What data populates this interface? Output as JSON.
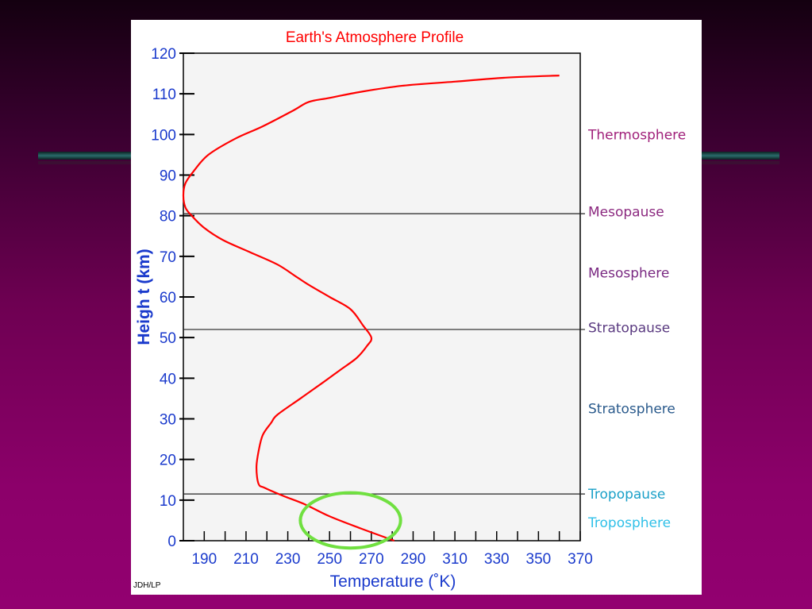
{
  "chart_data": {
    "type": "line",
    "title": "Earth's Atmosphere Profile",
    "xlabel": "Temperature (˚K)",
    "ylabel": "Heigh t (km)",
    "xlim": [
      180,
      370
    ],
    "ylim": [
      0,
      120
    ],
    "x_ticks": [
      190,
      210,
      230,
      250,
      270,
      290,
      310,
      330,
      350,
      370
    ],
    "y_ticks": [
      0,
      10,
      20,
      30,
      40,
      50,
      60,
      70,
      80,
      90,
      100,
      110,
      120
    ],
    "grid": false,
    "series": [
      {
        "color": "#ff0000",
        "x": [
          281,
          265,
          250,
          238,
          228,
          219,
          216,
          215,
          216,
          218,
          222,
          225,
          236,
          247,
          255,
          263,
          268,
          270,
          266,
          260,
          250,
          240,
          234,
          225,
          212,
          199,
          190,
          184,
          181,
          180,
          181,
          185,
          192,
          205,
          218,
          233,
          240,
          250,
          265,
          285,
          310,
          335,
          360
        ],
        "y": [
          0,
          3,
          6,
          9,
          11,
          13,
          14,
          18,
          22,
          26,
          29,
          31,
          35,
          39,
          42,
          45,
          48,
          50,
          53,
          57,
          60,
          63,
          65,
          68,
          71,
          74,
          77,
          80,
          82,
          85,
          88,
          91,
          95,
          99,
          102,
          106,
          108,
          109,
          110.5,
          112,
          113,
          114,
          114.5
        ]
      }
    ],
    "boundaries": [
      {
        "name": "Mesopause",
        "y": 80.5
      },
      {
        "name": "Stratopause",
        "y": 52
      },
      {
        "name": "Tropopause",
        "y": 11.5
      }
    ],
    "layer_labels": [
      {
        "text": "Thermosphere",
        "y": 100,
        "color": "#a0207a"
      },
      {
        "text": "Mesopause",
        "y": 81,
        "color": "#8c2a80"
      },
      {
        "text": "Mesosphere",
        "y": 66,
        "color": "#7a2a82"
      },
      {
        "text": "Stratopause",
        "y": 52.5,
        "color": "#5a3a80"
      },
      {
        "text": "Stratosphere",
        "y": 32.5,
        "color": "#2a5a8c"
      },
      {
        "text": "Tropopause",
        "y": 11.5,
        "color": "#1aa0c8"
      },
      {
        "text": "Troposphere",
        "y": 4.5,
        "color": "#30c0e8"
      }
    ],
    "credit": "JDH/LP",
    "annotation": {
      "shape": "ellipse",
      "color": "#70e040",
      "cx": 260,
      "cy": 5,
      "rx": 24,
      "ry": 6.8
    }
  }
}
